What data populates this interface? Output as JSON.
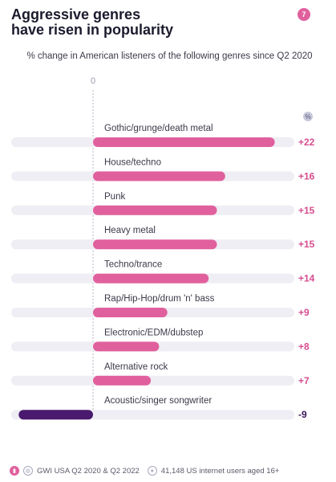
{
  "header": {
    "title_line1": "Aggressive genres",
    "title_line2": "have risen in popularity",
    "page_number": "7"
  },
  "chart_data": {
    "type": "bar",
    "orientation": "horizontal",
    "subtitle": "% change in American listeners of the following genres since Q2 2020",
    "zero_label": "0",
    "unit_label": "%",
    "categories": [
      "Gothic/grunge/death metal",
      "House/techno",
      "Punk",
      "Heavy metal",
      "Techno/trance",
      "Rap/Hip-Hop/drum 'n' bass",
      "Electronic/EDM/dubstep",
      "Alternative rock",
      "Acoustic/singer songwriter"
    ],
    "values": [
      22,
      16,
      15,
      15,
      14,
      9,
      8,
      7,
      -9
    ],
    "value_labels": [
      "+22",
      "+16",
      "+15",
      "+15",
      "+14",
      "+9",
      "+8",
      "+7",
      "-9"
    ],
    "colors": {
      "positive": "#e0609d",
      "negative": "#4a1a6e",
      "track": "#eeeef4",
      "zero_line": "#b4b4c8",
      "label_positive": "#d64d8f",
      "label_negative": "#3b1557"
    }
  },
  "footer": {
    "source": "GWI USA Q2 2020 & Q2 2022",
    "sample": "41,148 US internet users aged 16+"
  }
}
